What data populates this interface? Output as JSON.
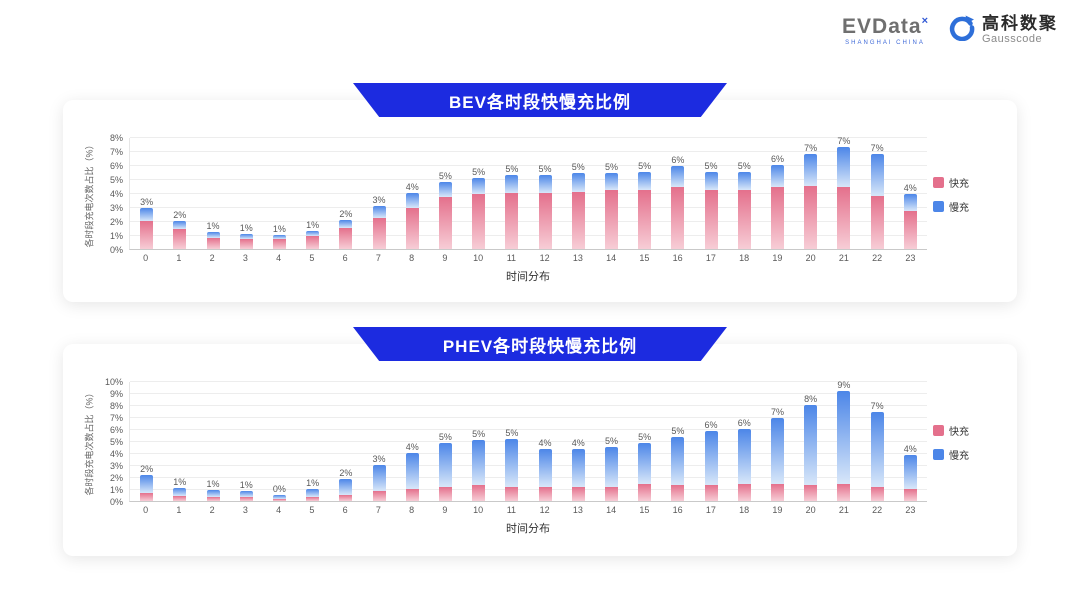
{
  "header": {
    "evdata": {
      "name": "EVData",
      "mark": "×",
      "tagline": "SHANGHAI CHINA"
    },
    "gausscode": {
      "cn": "高科数聚",
      "en": "Gausscode"
    }
  },
  "colors": {
    "banner_blue": "#1c2be0",
    "fast_pink": "#e4708c",
    "slow_blue": "#4c86e8",
    "logo_blue": "#2e6fd9"
  },
  "chart_data": [
    {
      "type": "bar",
      "stacked": true,
      "title": "BEV各时段快慢充比例",
      "xlabel": "时间分布",
      "ylabel": "各时段充电次数占比（%）",
      "ylim": [
        0,
        8
      ],
      "yticks": [
        "0%",
        "1%",
        "2%",
        "3%",
        "4%",
        "5%",
        "6%",
        "7%",
        "8%"
      ],
      "grid": true,
      "legend_position": "right",
      "categories": [
        "0",
        "1",
        "2",
        "3",
        "4",
        "5",
        "6",
        "7",
        "8",
        "9",
        "10",
        "11",
        "12",
        "13",
        "14",
        "15",
        "16",
        "17",
        "18",
        "19",
        "20",
        "21",
        "22",
        "23"
      ],
      "bar_labels": [
        "3%",
        "2%",
        "1%",
        "1%",
        "1%",
        "1%",
        "2%",
        "3%",
        "4%",
        "5%",
        "5%",
        "5%",
        "5%",
        "5%",
        "5%",
        "5%",
        "6%",
        "5%",
        "5%",
        "6%",
        "7%",
        "7%",
        "7%",
        "4%"
      ],
      "series": [
        {
          "key": "fast",
          "name": "快充",
          "color": "#e4708c",
          "color_light": "#f7cdd6",
          "values": [
            2.0,
            1.4,
            0.8,
            0.7,
            0.7,
            0.9,
            1.5,
            2.2,
            2.9,
            3.7,
            3.9,
            4.0,
            4.0,
            4.1,
            4.2,
            4.2,
            4.4,
            4.2,
            4.2,
            4.4,
            4.5,
            4.4,
            3.8,
            2.7
          ]
        },
        {
          "key": "slow",
          "name": "慢充",
          "color": "#4c86e8",
          "color_light": "#d8e7f9",
          "values": [
            0.9,
            0.6,
            0.4,
            0.4,
            0.3,
            0.4,
            0.6,
            0.9,
            1.1,
            1.1,
            1.2,
            1.3,
            1.3,
            1.3,
            1.2,
            1.3,
            1.5,
            1.3,
            1.3,
            1.6,
            2.3,
            2.9,
            3.0,
            1.2
          ]
        }
      ]
    },
    {
      "type": "bar",
      "stacked": true,
      "title": "PHEV各时段快慢充比例",
      "xlabel": "时间分布",
      "ylabel": "各时段充电次数占比（%）",
      "ylim": [
        0,
        10
      ],
      "yticks": [
        "0%",
        "1%",
        "2%",
        "3%",
        "4%",
        "5%",
        "6%",
        "7%",
        "8%",
        "9%",
        "10%"
      ],
      "grid": true,
      "legend_position": "right",
      "categories": [
        "0",
        "1",
        "2",
        "3",
        "4",
        "5",
        "6",
        "7",
        "8",
        "9",
        "10",
        "11",
        "12",
        "13",
        "14",
        "15",
        "16",
        "17",
        "18",
        "19",
        "20",
        "21",
        "22",
        "23"
      ],
      "bar_labels": [
        "2%",
        "1%",
        "1%",
        "1%",
        "0%",
        "1%",
        "2%",
        "3%",
        "4%",
        "5%",
        "5%",
        "5%",
        "4%",
        "4%",
        "5%",
        "5%",
        "5%",
        "6%",
        "6%",
        "7%",
        "8%",
        "9%",
        "7%",
        "4%"
      ],
      "series": [
        {
          "key": "fast",
          "name": "快充",
          "color": "#e4708c",
          "color_light": "#f7cdd6",
          "values": [
            0.7,
            0.4,
            0.3,
            0.3,
            0.2,
            0.3,
            0.5,
            0.8,
            1.0,
            1.2,
            1.3,
            1.2,
            1.2,
            1.2,
            1.2,
            1.4,
            1.3,
            1.3,
            1.4,
            1.4,
            1.3,
            1.4,
            1.2,
            1.0
          ]
        },
        {
          "key": "slow",
          "name": "慢充",
          "color": "#4c86e8",
          "color_light": "#d8e7f9",
          "values": [
            1.5,
            0.7,
            0.6,
            0.5,
            0.3,
            0.7,
            1.3,
            2.2,
            3.0,
            3.6,
            3.8,
            4.0,
            3.1,
            3.1,
            3.3,
            3.4,
            4.0,
            4.5,
            4.6,
            5.5,
            6.7,
            7.8,
            6.2,
            2.8
          ]
        }
      ]
    }
  ]
}
